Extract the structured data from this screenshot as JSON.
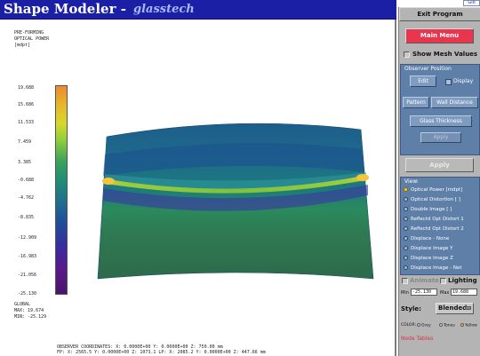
{
  "titlebar": {
    "app_name": "Shape Modeler -",
    "logo_text": "glasstech",
    "corner_tag": "Glo"
  },
  "plot_label": {
    "lines": [
      "PRE-FORMING",
      "OPTICAL POWER",
      "[mdpt]"
    ]
  },
  "scale": {
    "ticks": [
      "19.688",
      "15.686",
      "11.533",
      "7.459",
      "3.385",
      "-0.688",
      "-4.762",
      "-8.835",
      "-12.909",
      "-16.983",
      "-21.056",
      "-25.130"
    ]
  },
  "global_stats": {
    "label": "GLOBAL",
    "max": "MAX:  19.674",
    "min": "MIN: -25.129"
  },
  "footer": {
    "line1": "OBSERVER COORDINATES:  X:  0.0000E+00  Y:  0.0000E+00  Z:  750.00 mm",
    "line2": "FP:  X:   2565.5   Y:  0.0000E+00  Z:   1073.1   LP:  X:   2085.2   Y:  0.0000E+00  Z:   447.66 mm"
  },
  "panel": {
    "exit_program": "Exit Program",
    "main_menu": "Main Menu",
    "show_mesh_values": "Show Mesh Values",
    "observer": {
      "title": "Observer Position",
      "edit": "Edit",
      "display": "Display",
      "pattern": "Pattern",
      "wall_distance": "Wall Distance",
      "glass_thickness": "Glass Thickness",
      "apply": "Apply"
    },
    "apply": "Apply",
    "view": {
      "title": "View:",
      "items": [
        "Optical Power [mdpt]",
        "Optical Distortion [ ]",
        "Double Image [ ]",
        "Reflectd Opt Distort 1",
        "Reflectd Opt Distort 2",
        "Displace - None",
        "Displace Image Y",
        "Displace Image Z",
        "Displace Image - Net"
      ],
      "selected_index": 0
    },
    "animate": "Animate",
    "lighting": "Lighting",
    "min_label": "Min",
    "min_value": "-25.130",
    "max_label": "Max",
    "max_value": "19.688",
    "style_label": "Style:",
    "style_value": "Blended",
    "color_label": "COLOR:",
    "color_options": [
      "Grey",
      "Tones",
      "Yellow"
    ],
    "color_selected": 2,
    "node_tables": "Node Tables"
  },
  "colors": {
    "titlebar_bg": "#1b1fa6",
    "main_menu_bg": "#e8364f",
    "panel_bg": "#b4b4b4",
    "group_bg": "#5e7fa8",
    "node_tables_text": "#d8304a"
  },
  "icons": {
    "style_dropdown": "chevron-down-icon",
    "checkbox": "checkbox-icon",
    "radio": "radio-icon"
  }
}
